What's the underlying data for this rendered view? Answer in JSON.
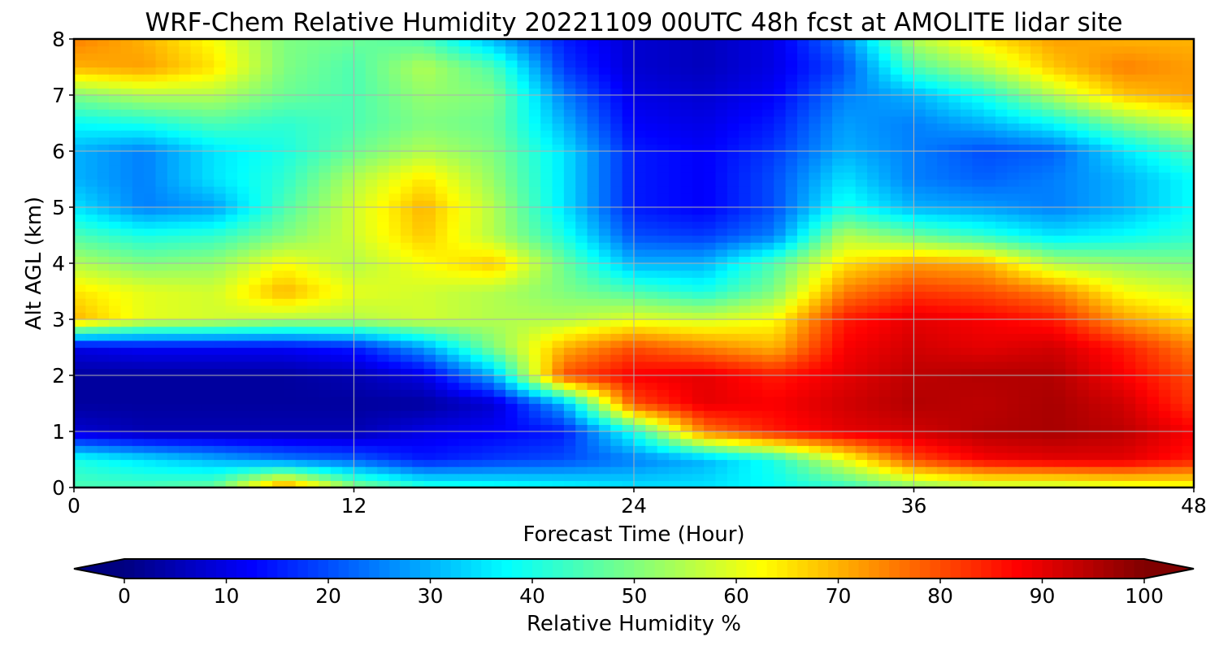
{
  "chart_data": {
    "type": "heatmap",
    "title": "WRF-Chem Relative Humidity 20221109 00UTC 48h fcst at AMOLITE lidar site",
    "xlabel": "Forecast Time (Hour)",
    "ylabel": "Alt AGL (km)",
    "xlim": [
      0,
      48
    ],
    "ylim": [
      0,
      8
    ],
    "xticks": [
      0,
      12,
      24,
      36,
      48
    ],
    "yticks": [
      0,
      1,
      2,
      3,
      4,
      5,
      6,
      7,
      8
    ],
    "grid": true,
    "colorbar": {
      "label": "Relative Humidity %",
      "min": 0,
      "max": 100,
      "ticks": [
        0,
        10,
        20,
        30,
        40,
        50,
        60,
        70,
        80,
        90,
        100
      ],
      "extend": "both",
      "colormap": "jet"
    },
    "x": [
      0,
      3,
      6,
      9,
      12,
      15,
      18,
      21,
      24,
      27,
      30,
      33,
      36,
      39,
      42,
      45,
      48
    ],
    "y": [
      0,
      0.5,
      1,
      1.5,
      2,
      2.5,
      3,
      3.5,
      4,
      4.5,
      5,
      5.5,
      6,
      6.5,
      7,
      7.5,
      8
    ],
    "z": [
      [
        45,
        45,
        48,
        75,
        52,
        42,
        40,
        38,
        35,
        35,
        38,
        42,
        50,
        55,
        55,
        58,
        60
      ],
      [
        40,
        35,
        30,
        25,
        22,
        15,
        18,
        20,
        25,
        30,
        40,
        60,
        80,
        88,
        90,
        90,
        85
      ],
      [
        8,
        5,
        5,
        5,
        5,
        10,
        12,
        15,
        40,
        75,
        85,
        90,
        92,
        95,
        96,
        94,
        88
      ],
      [
        3,
        3,
        3,
        3,
        3,
        3,
        8,
        30,
        80,
        90,
        88,
        92,
        95,
        94,
        96,
        92,
        82
      ],
      [
        3,
        3,
        3,
        3,
        5,
        10,
        30,
        80,
        88,
        90,
        85,
        90,
        94,
        95,
        95,
        88,
        80
      ],
      [
        10,
        12,
        12,
        12,
        15,
        28,
        50,
        70,
        80,
        75,
        70,
        88,
        92,
        90,
        92,
        85,
        75
      ],
      [
        70,
        60,
        58,
        55,
        55,
        58,
        55,
        55,
        60,
        58,
        62,
        85,
        90,
        88,
        85,
        72,
        65
      ],
      [
        65,
        60,
        58,
        70,
        60,
        58,
        55,
        50,
        45,
        40,
        50,
        75,
        82,
        80,
        75,
        62,
        58
      ],
      [
        55,
        50,
        52,
        62,
        55,
        62,
        68,
        48,
        30,
        30,
        45,
        65,
        72,
        70,
        55,
        52,
        50
      ],
      [
        45,
        40,
        42,
        50,
        58,
        68,
        55,
        40,
        20,
        18,
        25,
        55,
        48,
        42,
        35,
        38,
        42
      ],
      [
        35,
        25,
        28,
        45,
        58,
        70,
        55,
        35,
        15,
        12,
        20,
        40,
        30,
        28,
        25,
        30,
        38
      ],
      [
        30,
        25,
        35,
        42,
        55,
        65,
        52,
        35,
        15,
        12,
        20,
        35,
        25,
        22,
        25,
        30,
        38
      ],
      [
        30,
        25,
        35,
        40,
        48,
        55,
        50,
        35,
        15,
        12,
        18,
        30,
        25,
        20,
        22,
        35,
        45
      ],
      [
        38,
        40,
        45,
        42,
        45,
        50,
        48,
        30,
        12,
        10,
        15,
        28,
        25,
        30,
        38,
        50,
        58
      ],
      [
        50,
        55,
        55,
        48,
        45,
        52,
        50,
        25,
        10,
        8,
        12,
        25,
        30,
        40,
        55,
        68,
        72
      ],
      [
        70,
        72,
        65,
        50,
        45,
        55,
        45,
        18,
        8,
        6,
        10,
        20,
        45,
        55,
        68,
        75,
        72
      ],
      [
        75,
        70,
        62,
        50,
        48,
        45,
        30,
        15,
        8,
        6,
        10,
        25,
        55,
        65,
        72,
        70,
        70
      ]
    ]
  }
}
